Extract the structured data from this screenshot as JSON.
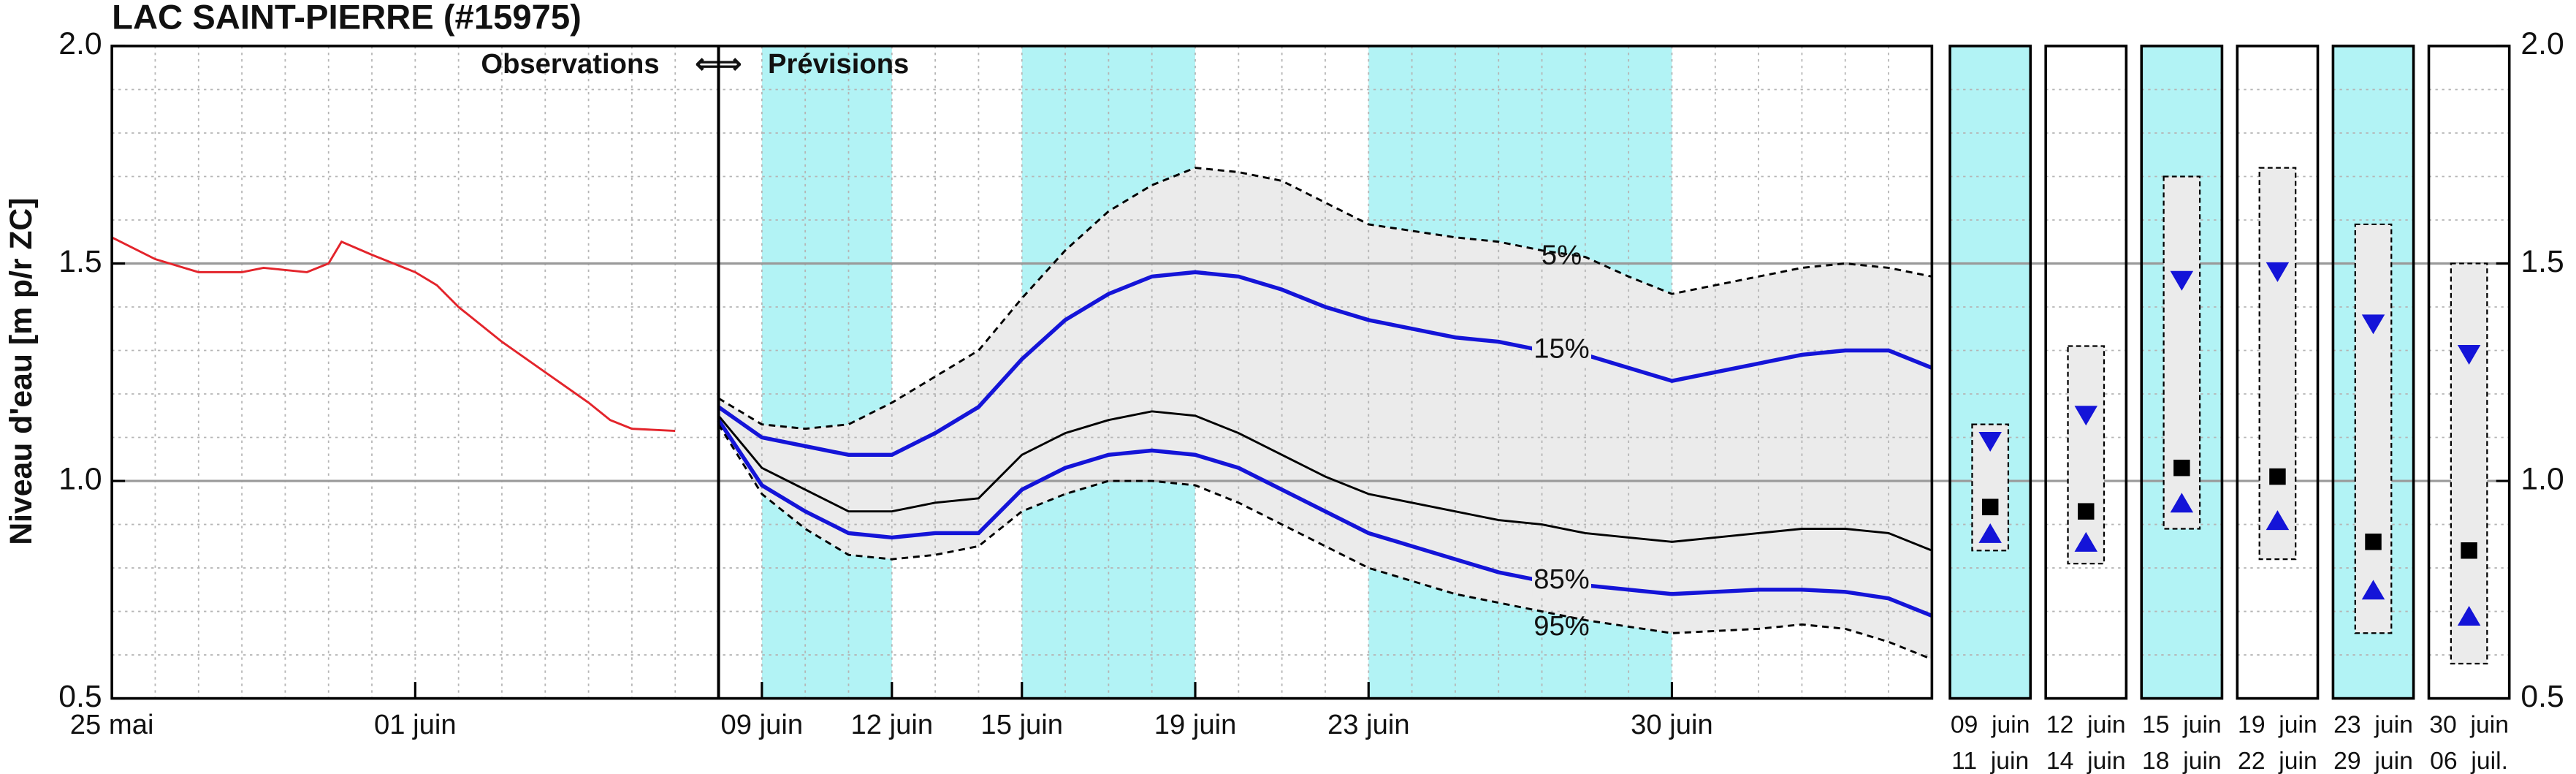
{
  "chart_data": {
    "type": "line",
    "title": "LAC SAINT-PIERRE (#15975)",
    "ylabel": "Niveau d'eau [m p/r ZC]",
    "annotations": [
      "Observations",
      "⇐⇒",
      "Prévisions"
    ],
    "xlim": [
      0,
      42
    ],
    "ylim": [
      0.5,
      2.0
    ],
    "xticks": [
      {
        "value": 0,
        "label": "25 mai"
      },
      {
        "value": 7,
        "label": "01 juin"
      },
      {
        "value": 15,
        "label": "09 juin"
      },
      {
        "value": 18,
        "label": "12 juin"
      },
      {
        "value": 21,
        "label": "15 juin"
      },
      {
        "value": 25,
        "label": "19 juin"
      },
      {
        "value": 29,
        "label": "23 juin"
      },
      {
        "value": 36,
        "label": "30 juin"
      }
    ],
    "yticks": [
      0.5,
      {
        "value": 1,
        "label": "1.0"
      },
      1.5,
      {
        "value": 2,
        "label": "2.0"
      }
    ],
    "xminor": [
      1,
      2,
      3,
      4,
      5,
      6,
      8,
      9,
      10,
      11,
      12,
      13,
      14,
      16,
      17,
      19,
      20,
      22,
      23,
      24,
      26,
      27,
      28,
      30,
      31,
      32,
      33,
      34,
      35,
      37,
      38,
      39,
      40,
      41
    ],
    "yminor": [
      0.6,
      0.7,
      0.8,
      0.9,
      1.1,
      1.2,
      1.3,
      1.4,
      1.6,
      1.7,
      1.8,
      1.9
    ],
    "divider_x": 14,
    "shaded_periods": [
      [
        15,
        18
      ],
      [
        21,
        25
      ],
      [
        29,
        36
      ]
    ],
    "shade_color": "#b2f3f5",
    "band_color": "#ebebeb",
    "series": [
      {
        "color": "#e3242b",
        "x": [
          0,
          1,
          2,
          3,
          3.5,
          4,
          4.5,
          5,
          5.3,
          6,
          6.5,
          7,
          7.5,
          8,
          9,
          10,
          11,
          11.5,
          12,
          13
        ],
        "values": [
          1.56,
          1.51,
          1.48,
          1.48,
          1.49,
          1.485,
          1.48,
          1.5,
          1.55,
          1.52,
          1.5,
          1.48,
          1.45,
          1.4,
          1.32,
          1.25,
          1.18,
          1.14,
          1.12,
          1.115
        ]
      },
      {
        "name": "5%",
        "color": "#000000",
        "dash": true,
        "x": [
          14,
          15,
          16,
          17,
          18,
          19,
          20,
          21,
          22,
          23,
          24,
          25,
          26,
          27,
          28,
          29,
          30,
          31,
          32,
          33,
          34,
          35,
          36,
          37,
          38,
          39,
          40,
          41,
          42
        ],
        "values": [
          1.19,
          1.13,
          1.12,
          1.13,
          1.18,
          1.24,
          1.3,
          1.42,
          1.53,
          1.62,
          1.68,
          1.72,
          1.71,
          1.69,
          1.64,
          1.59,
          1.575,
          1.56,
          1.55,
          1.53,
          1.515,
          1.47,
          1.43,
          1.45,
          1.47,
          1.49,
          1.5,
          1.49,
          1.47
        ]
      },
      {
        "name": "15%",
        "color": "#1414d8",
        "x": [
          14,
          15,
          16,
          17,
          18,
          19,
          20,
          21,
          22,
          23,
          24,
          25,
          26,
          27,
          28,
          29,
          30,
          31,
          32,
          33,
          34,
          35,
          36,
          37,
          38,
          39,
          40,
          41,
          42
        ],
        "values": [
          1.17,
          1.1,
          1.08,
          1.06,
          1.06,
          1.11,
          1.17,
          1.28,
          1.37,
          1.43,
          1.47,
          1.48,
          1.47,
          1.44,
          1.4,
          1.37,
          1.35,
          1.33,
          1.32,
          1.3,
          1.29,
          1.26,
          1.23,
          1.25,
          1.27,
          1.29,
          1.3,
          1.3,
          1.26
        ]
      },
      {
        "color": "#000000",
        "x": [
          14,
          15,
          16,
          17,
          18,
          19,
          20,
          21,
          22,
          23,
          24,
          25,
          26,
          27,
          28,
          29,
          30,
          31,
          32,
          33,
          34,
          35,
          36,
          37,
          38,
          39,
          40,
          41,
          42
        ],
        "values": [
          1.15,
          1.03,
          0.98,
          0.93,
          0.93,
          0.95,
          0.96,
          1.06,
          1.11,
          1.14,
          1.16,
          1.15,
          1.11,
          1.06,
          1.01,
          0.97,
          0.95,
          0.93,
          0.91,
          0.9,
          0.88,
          0.87,
          0.86,
          0.87,
          0.88,
          0.89,
          0.89,
          0.88,
          0.84
        ]
      },
      {
        "name": "85%",
        "color": "#1414d8",
        "x": [
          14,
          15,
          16,
          17,
          18,
          19,
          20,
          21,
          22,
          23,
          24,
          25,
          26,
          27,
          28,
          29,
          30,
          31,
          32,
          33,
          34,
          35,
          36,
          37,
          38,
          39,
          40,
          41,
          42
        ],
        "values": [
          1.14,
          0.99,
          0.93,
          0.88,
          0.87,
          0.88,
          0.88,
          0.98,
          1.03,
          1.06,
          1.07,
          1.06,
          1.03,
          0.98,
          0.93,
          0.88,
          0.85,
          0.82,
          0.79,
          0.77,
          0.76,
          0.75,
          0.74,
          0.745,
          0.75,
          0.75,
          0.745,
          0.73,
          0.69
        ]
      },
      {
        "name": "95%",
        "color": "#000000",
        "dash": true,
        "x": [
          14,
          15,
          16,
          17,
          18,
          19,
          20,
          21,
          22,
          23,
          24,
          25,
          26,
          27,
          28,
          29,
          30,
          31,
          32,
          33,
          34,
          35,
          36,
          37,
          38,
          39,
          40,
          41,
          42
        ],
        "values": [
          1.13,
          0.97,
          0.89,
          0.83,
          0.82,
          0.83,
          0.85,
          0.93,
          0.97,
          1.0,
          1.0,
          0.99,
          0.95,
          0.9,
          0.85,
          0.8,
          0.77,
          0.74,
          0.72,
          0.7,
          0.68,
          0.665,
          0.65,
          0.655,
          0.66,
          0.67,
          0.66,
          0.63,
          0.59
        ]
      }
    ],
    "panels": [
      {
        "label": [
          "09  juin",
          "11  juin"
        ],
        "shaded": true,
        "max": 1.13,
        "p15": 1.09,
        "median": 0.94,
        "p85": 0.88,
        "min": 0.84
      },
      {
        "label": [
          "12  juin",
          "14  juin"
        ],
        "shaded": false,
        "max": 1.31,
        "p15": 1.15,
        "median": 0.93,
        "p85": 0.86,
        "min": 0.81
      },
      {
        "label": [
          "15  juin",
          "18  juin"
        ],
        "shaded": true,
        "max": 1.7,
        "p15": 1.46,
        "median": 1.03,
        "p85": 0.95,
        "min": 0.89
      },
      {
        "label": [
          "19  juin",
          "22  juin"
        ],
        "shaded": false,
        "max": 1.72,
        "p15": 1.48,
        "median": 1.01,
        "p85": 0.91,
        "min": 0.82
      },
      {
        "label": [
          "23  juin",
          "29  juin"
        ],
        "shaded": true,
        "max": 1.59,
        "p15": 1.36,
        "median": 0.86,
        "p85": 0.75,
        "min": 0.65
      },
      {
        "label": [
          "30  juin",
          "06  juil."
        ],
        "shaded": false,
        "max": 1.5,
        "p15": 1.29,
        "median": 0.84,
        "p85": 0.69,
        "min": 0.58
      }
    ]
  }
}
